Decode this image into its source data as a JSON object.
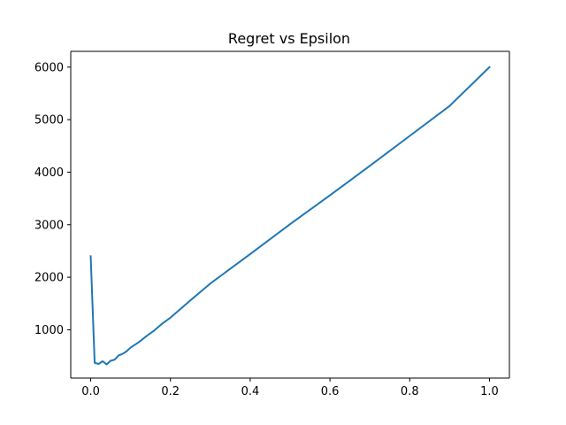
{
  "chart_data": {
    "type": "line",
    "title": "Regret vs Epsilon",
    "xlabel": "",
    "ylabel": "",
    "xlim": [
      -0.05,
      1.05
    ],
    "ylim": [
      80,
      6300
    ],
    "x_ticks": [
      0.0,
      0.2,
      0.4,
      0.6,
      0.8,
      1.0
    ],
    "x_tick_labels": [
      "0.0",
      "0.2",
      "0.4",
      "0.6",
      "0.8",
      "1.0"
    ],
    "y_ticks": [
      1000,
      2000,
      3000,
      4000,
      5000,
      6000
    ],
    "y_tick_labels": [
      "1000",
      "2000",
      "3000",
      "4000",
      "5000",
      "6000"
    ],
    "grid": false,
    "legend": "none",
    "series": [
      {
        "color": "#1f77b4",
        "x": [
          0.0,
          0.01,
          0.02,
          0.03,
          0.04,
          0.05,
          0.06,
          0.07,
          0.08,
          0.09,
          0.1,
          0.12,
          0.14,
          0.16,
          0.18,
          0.2,
          0.25,
          0.3,
          0.4,
          0.5,
          0.6,
          0.7,
          0.8,
          0.9,
          1.0
        ],
        "y": [
          2400,
          370,
          350,
          400,
          340,
          410,
          430,
          510,
          540,
          590,
          660,
          760,
          880,
          990,
          1120,
          1230,
          1560,
          1880,
          2440,
          3010,
          3560,
          4120,
          4690,
          5260,
          6000
        ]
      }
    ]
  }
}
